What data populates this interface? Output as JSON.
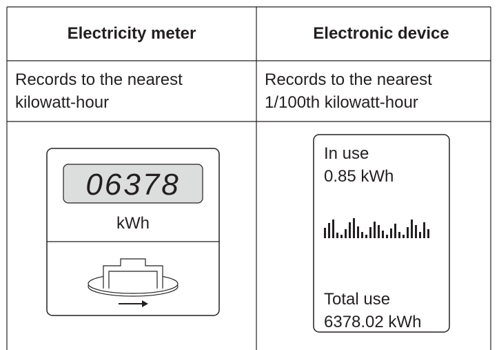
{
  "table": {
    "header": [
      "Electricity meter",
      "Electronic device"
    ],
    "rows": [
      [
        "Records to the nearest kilowatt-hour",
        "Records to the nearest 1/100th kilowatt-hour"
      ]
    ]
  },
  "meter": {
    "reading": "06378",
    "unit": "kWh"
  },
  "device": {
    "in_use_label": "In use",
    "in_use_value": "0.85 kWh",
    "total_label": "Total use",
    "total_value": "6378.02 kWh"
  }
}
